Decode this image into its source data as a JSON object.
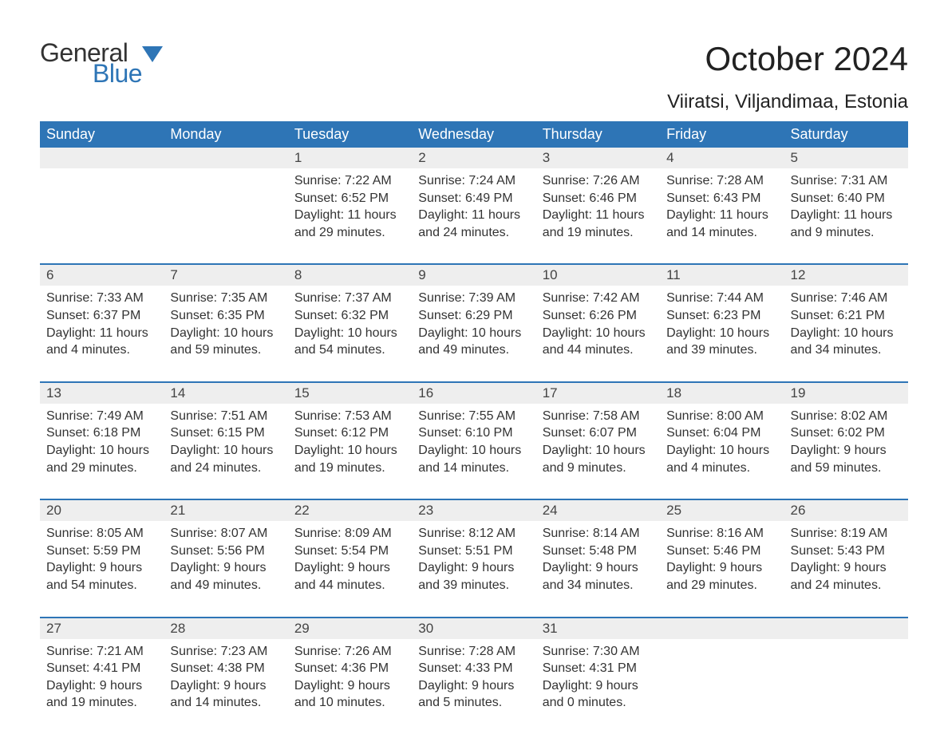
{
  "brand": {
    "word1": "General",
    "word2": "Blue",
    "flag_color": "#2e75b6"
  },
  "title": "October 2024",
  "location": "Viiratsi, Viljandimaa, Estonia",
  "colors": {
    "header_bg": "#2e75b6",
    "header_text": "#ffffff",
    "daynum_bg": "#eeeeee",
    "row_divider": "#2e75b6",
    "body_text": "#333333",
    "page_bg": "#ffffff"
  },
  "day_headers": [
    "Sunday",
    "Monday",
    "Tuesday",
    "Wednesday",
    "Thursday",
    "Friday",
    "Saturday"
  ],
  "weeks": [
    [
      null,
      null,
      {
        "n": "1",
        "sr": "7:22 AM",
        "ss": "6:52 PM",
        "dl": "11 hours and 29 minutes."
      },
      {
        "n": "2",
        "sr": "7:24 AM",
        "ss": "6:49 PM",
        "dl": "11 hours and 24 minutes."
      },
      {
        "n": "3",
        "sr": "7:26 AM",
        "ss": "6:46 PM",
        "dl": "11 hours and 19 minutes."
      },
      {
        "n": "4",
        "sr": "7:28 AM",
        "ss": "6:43 PM",
        "dl": "11 hours and 14 minutes."
      },
      {
        "n": "5",
        "sr": "7:31 AM",
        "ss": "6:40 PM",
        "dl": "11 hours and 9 minutes."
      }
    ],
    [
      {
        "n": "6",
        "sr": "7:33 AM",
        "ss": "6:37 PM",
        "dl": "11 hours and 4 minutes."
      },
      {
        "n": "7",
        "sr": "7:35 AM",
        "ss": "6:35 PM",
        "dl": "10 hours and 59 minutes."
      },
      {
        "n": "8",
        "sr": "7:37 AM",
        "ss": "6:32 PM",
        "dl": "10 hours and 54 minutes."
      },
      {
        "n": "9",
        "sr": "7:39 AM",
        "ss": "6:29 PM",
        "dl": "10 hours and 49 minutes."
      },
      {
        "n": "10",
        "sr": "7:42 AM",
        "ss": "6:26 PM",
        "dl": "10 hours and 44 minutes."
      },
      {
        "n": "11",
        "sr": "7:44 AM",
        "ss": "6:23 PM",
        "dl": "10 hours and 39 minutes."
      },
      {
        "n": "12",
        "sr": "7:46 AM",
        "ss": "6:21 PM",
        "dl": "10 hours and 34 minutes."
      }
    ],
    [
      {
        "n": "13",
        "sr": "7:49 AM",
        "ss": "6:18 PM",
        "dl": "10 hours and 29 minutes."
      },
      {
        "n": "14",
        "sr": "7:51 AM",
        "ss": "6:15 PM",
        "dl": "10 hours and 24 minutes."
      },
      {
        "n": "15",
        "sr": "7:53 AM",
        "ss": "6:12 PM",
        "dl": "10 hours and 19 minutes."
      },
      {
        "n": "16",
        "sr": "7:55 AM",
        "ss": "6:10 PM",
        "dl": "10 hours and 14 minutes."
      },
      {
        "n": "17",
        "sr": "7:58 AM",
        "ss": "6:07 PM",
        "dl": "10 hours and 9 minutes."
      },
      {
        "n": "18",
        "sr": "8:00 AM",
        "ss": "6:04 PM",
        "dl": "10 hours and 4 minutes."
      },
      {
        "n": "19",
        "sr": "8:02 AM",
        "ss": "6:02 PM",
        "dl": "9 hours and 59 minutes."
      }
    ],
    [
      {
        "n": "20",
        "sr": "8:05 AM",
        "ss": "5:59 PM",
        "dl": "9 hours and 54 minutes."
      },
      {
        "n": "21",
        "sr": "8:07 AM",
        "ss": "5:56 PM",
        "dl": "9 hours and 49 minutes."
      },
      {
        "n": "22",
        "sr": "8:09 AM",
        "ss": "5:54 PM",
        "dl": "9 hours and 44 minutes."
      },
      {
        "n": "23",
        "sr": "8:12 AM",
        "ss": "5:51 PM",
        "dl": "9 hours and 39 minutes."
      },
      {
        "n": "24",
        "sr": "8:14 AM",
        "ss": "5:48 PM",
        "dl": "9 hours and 34 minutes."
      },
      {
        "n": "25",
        "sr": "8:16 AM",
        "ss": "5:46 PM",
        "dl": "9 hours and 29 minutes."
      },
      {
        "n": "26",
        "sr": "8:19 AM",
        "ss": "5:43 PM",
        "dl": "9 hours and 24 minutes."
      }
    ],
    [
      {
        "n": "27",
        "sr": "7:21 AM",
        "ss": "4:41 PM",
        "dl": "9 hours and 19 minutes."
      },
      {
        "n": "28",
        "sr": "7:23 AM",
        "ss": "4:38 PM",
        "dl": "9 hours and 14 minutes."
      },
      {
        "n": "29",
        "sr": "7:26 AM",
        "ss": "4:36 PM",
        "dl": "9 hours and 10 minutes."
      },
      {
        "n": "30",
        "sr": "7:28 AM",
        "ss": "4:33 PM",
        "dl": "9 hours and 5 minutes."
      },
      {
        "n": "31",
        "sr": "7:30 AM",
        "ss": "4:31 PM",
        "dl": "9 hours and 0 minutes."
      },
      null,
      null
    ]
  ],
  "labels": {
    "sunrise": "Sunrise: ",
    "sunset": "Sunset: ",
    "daylight": "Daylight: "
  }
}
